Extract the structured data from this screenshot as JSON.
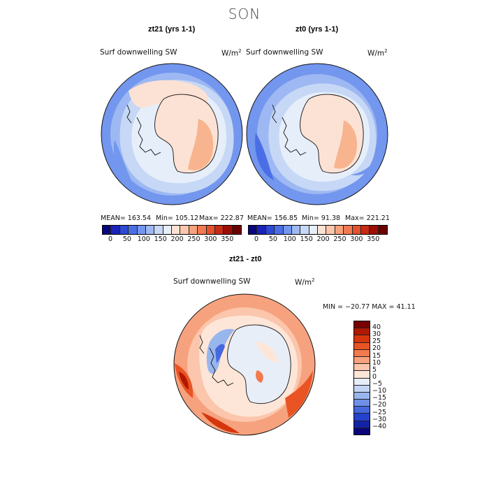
{
  "title": "SON",
  "panels": [
    {
      "title": "zt21 (yrs 1-1)",
      "variable": "Surf downwelling SW",
      "unit": "W/m",
      "unit_exp": "2",
      "stats": {
        "mean": "MEAN= 163.54",
        "min": "Min= 105.12",
        "max": "Max= 222.87"
      }
    },
    {
      "title": "zt0 (yrs 1-1)",
      "variable": "Surf downwelling SW",
      "unit": "W/m",
      "unit_exp": "2",
      "stats": {
        "mean": "MEAN= 156.85",
        "min": "Min=  91.38",
        "max": "Max= 221.21"
      }
    }
  ],
  "abs_colorbar": {
    "labels": [
      "0",
      "50",
      "100",
      "150",
      "200",
      "250",
      "300",
      "350"
    ],
    "colors": [
      "#08067f",
      "#1a22b8",
      "#2f48d6",
      "#4a6ee6",
      "#7396ee",
      "#9db8f2",
      "#c6d8f6",
      "#e6eefa",
      "#fce2d4",
      "#fcc6ac",
      "#f7a27d",
      "#f27a52",
      "#e6502d",
      "#c92a14",
      "#9c0e05",
      "#6c0000"
    ]
  },
  "diff_panel": {
    "title": "zt21 - zt0",
    "variable": "Surf downwelling SW",
    "unit": "W/m",
    "unit_exp": "2",
    "minmax": "MIN = −20.77 MAX =   41.11"
  },
  "diff_colorbar": {
    "labels": [
      "40",
      "30",
      "25",
      "20",
      "15",
      "10",
      "5",
      "0",
      "−5",
      "−10",
      "−15",
      "−20",
      "−25",
      "−30",
      "−40"
    ],
    "colors": [
      "#7a0000",
      "#b01800",
      "#d6360e",
      "#ea5424",
      "#f27a4e",
      "#f7a27e",
      "#fbc6ac",
      "#fde6d8",
      "#e8eef8",
      "#c2d6f4",
      "#98b6ee",
      "#6e90e6",
      "#4668de",
      "#2442cc",
      "#1222a8",
      "#08067a"
    ]
  },
  "colors": {
    "ocean_light": "#c6d8f6",
    "ocean_mid": "#9db8f2",
    "land_peach": "#fce2d4",
    "land_orange": "#f7b48e"
  }
}
